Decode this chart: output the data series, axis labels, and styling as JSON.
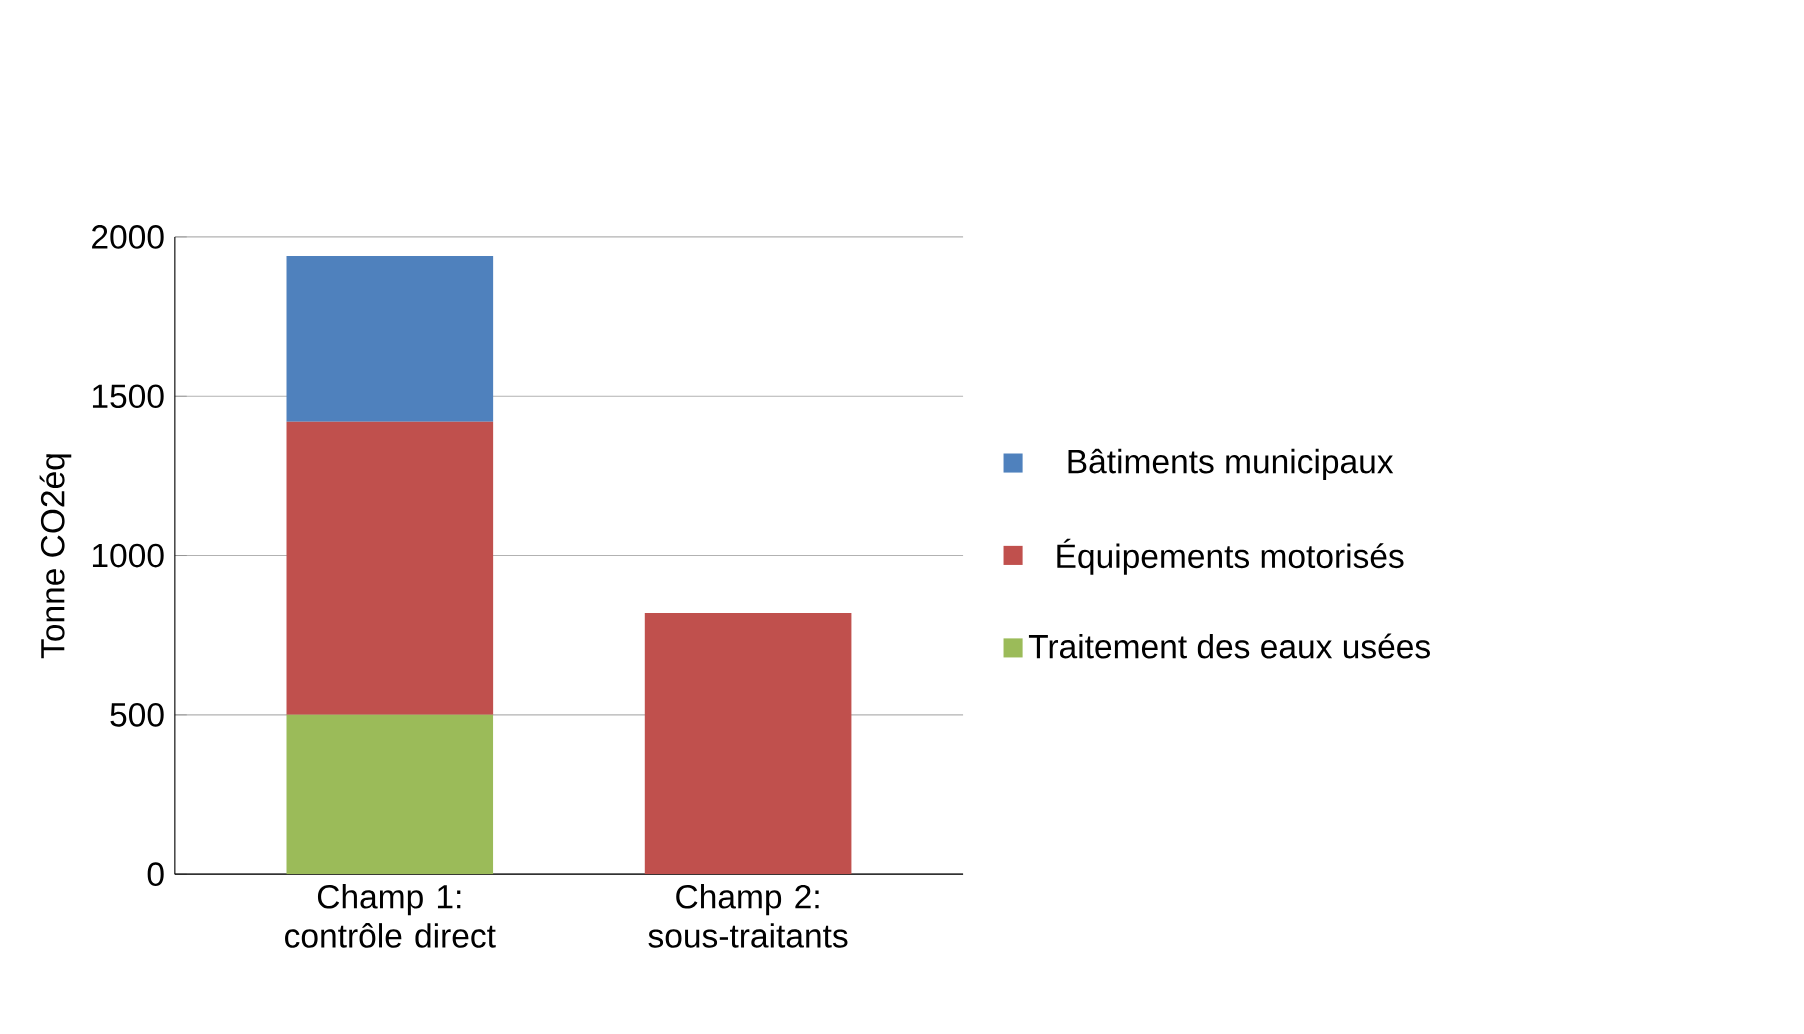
{
  "chart_data": {
    "type": "bar",
    "stacked": true,
    "ylabel": "Tonne CO2éq",
    "categories": [
      "Champ 1: contrôle direct",
      "Champ 2: sous-traitants"
    ],
    "series": [
      {
        "name": "Traitement des eaux usées",
        "color": "#9bbb59",
        "values": [
          500,
          0
        ]
      },
      {
        "name": "Équipements motorisés",
        "color": "#c0504d",
        "values": [
          920,
          820
        ]
      },
      {
        "name": "Bâtiments municipaux",
        "color": "#4f81bd",
        "values": [
          520,
          0
        ]
      }
    ],
    "ylim": [
      0,
      2000
    ],
    "yticks": [
      0,
      500,
      1000,
      1500,
      2000
    ],
    "grid": "y",
    "legend": "right"
  }
}
